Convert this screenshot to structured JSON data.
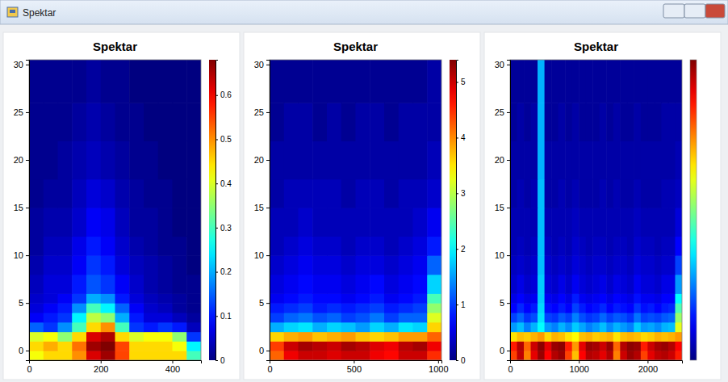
{
  "window": {
    "title": "Spektar"
  },
  "chart_data": [
    {
      "type": "heatmap",
      "title": "Spektar",
      "x_edges": [
        0,
        40,
        80,
        120,
        160,
        200,
        240,
        280,
        320,
        360,
        400,
        440,
        480
      ],
      "y_edges": [
        -1,
        0,
        1,
        2,
        3,
        4,
        5,
        6,
        8,
        10,
        12,
        15,
        18,
        22,
        26,
        30.5
      ],
      "z": [
        [
          0.42,
          0.45,
          0.45,
          0.5,
          0.62,
          0.66,
          0.55,
          0.45,
          0.45,
          0.45,
          0.45,
          0.3
        ],
        [
          0.45,
          0.48,
          0.45,
          0.52,
          0.66,
          0.68,
          0.55,
          0.45,
          0.45,
          0.45,
          0.42,
          0.25
        ],
        [
          0.4,
          0.42,
          0.35,
          0.45,
          0.62,
          0.65,
          0.45,
          0.4,
          0.42,
          0.42,
          0.35,
          0.12
        ],
        [
          0.15,
          0.12,
          0.18,
          0.3,
          0.45,
          0.5,
          0.3,
          0.12,
          0.1,
          0.12,
          0.1,
          0.04
        ],
        [
          0.08,
          0.1,
          0.12,
          0.25,
          0.38,
          0.35,
          0.2,
          0.1,
          0.06,
          0.06,
          0.04,
          0.02
        ],
        [
          0.06,
          0.08,
          0.1,
          0.18,
          0.3,
          0.25,
          0.15,
          0.08,
          0.05,
          0.04,
          0.02,
          0.01
        ],
        [
          0.05,
          0.06,
          0.08,
          0.12,
          0.2,
          0.18,
          0.1,
          0.06,
          0.04,
          0.03,
          0.02,
          0.01
        ],
        [
          0.04,
          0.06,
          0.06,
          0.1,
          0.14,
          0.12,
          0.08,
          0.05,
          0.03,
          0.02,
          0.01,
          0.01
        ],
        [
          0.03,
          0.05,
          0.05,
          0.08,
          0.12,
          0.1,
          0.06,
          0.04,
          0.03,
          0.02,
          0.01,
          0.0
        ],
        [
          0.02,
          0.04,
          0.04,
          0.07,
          0.1,
          0.08,
          0.05,
          0.03,
          0.02,
          0.01,
          0.01,
          0.0
        ],
        [
          0.02,
          0.03,
          0.03,
          0.05,
          0.08,
          0.07,
          0.04,
          0.02,
          0.02,
          0.01,
          0.0,
          0.0
        ],
        [
          0.01,
          0.02,
          0.02,
          0.04,
          0.06,
          0.05,
          0.03,
          0.02,
          0.01,
          0.01,
          0.0,
          0.0
        ],
        [
          0.01,
          0.01,
          0.02,
          0.03,
          0.04,
          0.03,
          0.02,
          0.01,
          0.01,
          0.0,
          0.0,
          0.0
        ],
        [
          0.01,
          0.01,
          0.01,
          0.02,
          0.03,
          0.02,
          0.01,
          0.01,
          0.0,
          0.0,
          0.0,
          0.0
        ],
        [
          0.01,
          0.01,
          0.01,
          0.01,
          0.02,
          0.01,
          0.01,
          0.0,
          0.0,
          0.0,
          0.0,
          0.0
        ]
      ],
      "xlim": [
        0,
        480
      ],
      "xticks": [
        0,
        200,
        400
      ],
      "ylim": [
        -1,
        30.5
      ],
      "yticks": [
        0,
        5,
        10,
        15,
        20,
        25,
        30
      ],
      "colorbar_lim": [
        0,
        0.68
      ],
      "colorbar_ticks": [
        0,
        0.1,
        0.2,
        0.3,
        0.4,
        0.5,
        0.6
      ]
    },
    {
      "type": "heatmap",
      "title": "Spektar",
      "x_edges": [
        0,
        85,
        170,
        255,
        340,
        425,
        510,
        595,
        680,
        765,
        850,
        935,
        1020
      ],
      "y_edges": [
        -1,
        0,
        1,
        2,
        3,
        4,
        5,
        6,
        8,
        10,
        12,
        15,
        18,
        22,
        26,
        30.5
      ],
      "z": [
        [
          4.2,
          4.8,
          5.0,
          5.0,
          4.9,
          5.0,
          5.0,
          4.8,
          4.7,
          5.0,
          5.0,
          4.5
        ],
        [
          4.4,
          5.0,
          5.2,
          5.1,
          5.0,
          5.2,
          5.1,
          4.9,
          4.8,
          5.1,
          5.2,
          4.8
        ],
        [
          3.6,
          3.8,
          3.9,
          3.7,
          3.8,
          3.9,
          3.7,
          3.6,
          3.7,
          3.9,
          3.9,
          4.2
        ],
        [
          1.6,
          1.8,
          1.9,
          1.6,
          1.8,
          1.7,
          1.5,
          1.8,
          1.6,
          1.9,
          1.8,
          3.6
        ],
        [
          1.0,
          1.2,
          1.3,
          1.1,
          1.2,
          1.0,
          1.1,
          1.3,
          1.0,
          1.2,
          1.2,
          3.2
        ],
        [
          0.8,
          0.9,
          1.0,
          0.8,
          0.9,
          0.8,
          0.9,
          1.0,
          0.8,
          0.9,
          1.0,
          2.8
        ],
        [
          0.6,
          0.7,
          0.8,
          0.7,
          0.7,
          0.6,
          0.7,
          0.8,
          0.6,
          0.7,
          0.8,
          2.4
        ],
        [
          0.5,
          0.6,
          0.7,
          0.6,
          0.6,
          0.5,
          0.6,
          0.7,
          0.5,
          0.6,
          0.7,
          1.8
        ],
        [
          0.4,
          0.5,
          0.6,
          0.5,
          0.5,
          0.4,
          0.5,
          0.5,
          0.4,
          0.5,
          0.6,
          1.2
        ],
        [
          0.3,
          0.4,
          0.5,
          0.4,
          0.4,
          0.3,
          0.4,
          0.4,
          0.3,
          0.4,
          0.5,
          0.8
        ],
        [
          0.3,
          0.3,
          0.4,
          0.3,
          0.3,
          0.3,
          0.3,
          0.3,
          0.3,
          0.3,
          0.4,
          0.6
        ],
        [
          0.2,
          0.3,
          0.3,
          0.3,
          0.3,
          0.2,
          0.3,
          0.3,
          0.2,
          0.3,
          0.3,
          0.4
        ],
        [
          0.2,
          0.2,
          0.2,
          0.2,
          0.2,
          0.2,
          0.2,
          0.2,
          0.2,
          0.2,
          0.2,
          0.3
        ],
        [
          0.1,
          0.2,
          0.2,
          0.1,
          0.2,
          0.1,
          0.2,
          0.2,
          0.1,
          0.2,
          0.2,
          0.2
        ],
        [
          0.1,
          0.1,
          0.1,
          0.1,
          0.1,
          0.1,
          0.1,
          0.1,
          0.1,
          0.1,
          0.1,
          0.2
        ]
      ],
      "xlim": [
        0,
        1020
      ],
      "xticks": [
        0,
        500,
        1000
      ],
      "ylim": [
        -1,
        30.5
      ],
      "yticks": [
        0,
        5,
        10,
        15,
        20,
        25,
        30
      ],
      "colorbar_lim": [
        0,
        5.4
      ],
      "colorbar_ticks": [
        0,
        1,
        2,
        3,
        4,
        5
      ]
    },
    {
      "type": "heatmap",
      "title": "Spektar",
      "x_edges": [
        0,
        100,
        200,
        300,
        400,
        500,
        600,
        700,
        800,
        900,
        1000,
        1100,
        1200,
        1300,
        1400,
        1500,
        1600,
        1700,
        1800,
        1900,
        2000,
        2100,
        2200,
        2300,
        2400,
        2500
      ],
      "y_edges": [
        -1,
        0,
        1,
        2,
        3,
        4,
        5,
        6,
        8,
        10,
        12,
        15,
        18,
        22,
        26,
        30.5
      ],
      "z": [
        [
          6.5,
          7.5,
          6.0,
          7.2,
          7.8,
          7.0,
          7.6,
          7.8,
          6.5,
          5.5,
          7.0,
          7.6,
          7.5,
          7.2,
          7.6,
          6.0,
          7.4,
          7.8,
          7.6,
          6.5,
          7.2,
          7.5,
          7.6,
          7.4,
          6.8
        ],
        [
          6.8,
          7.6,
          6.2,
          7.4,
          7.9,
          7.2,
          7.8,
          7.9,
          6.8,
          5.8,
          7.2,
          7.8,
          7.7,
          7.4,
          7.8,
          6.2,
          7.6,
          7.9,
          7.8,
          6.8,
          7.4,
          7.7,
          7.8,
          7.6,
          7.0
        ],
        [
          5.2,
          5.5,
          5.4,
          5.6,
          5.8,
          5.3,
          5.6,
          5.5,
          5.2,
          5.0,
          5.5,
          5.6,
          5.4,
          5.5,
          5.6,
          5.2,
          5.5,
          5.6,
          5.5,
          5.3,
          5.4,
          5.6,
          5.5,
          5.6,
          5.8
        ],
        [
          2.2,
          2.5,
          2.0,
          2.4,
          3.0,
          2.2,
          2.0,
          2.4,
          2.1,
          2.6,
          2.3,
          2.0,
          2.2,
          2.5,
          2.1,
          2.4,
          2.2,
          2.0,
          2.6,
          2.2,
          2.3,
          2.1,
          2.4,
          2.5,
          4.8
        ],
        [
          1.5,
          1.8,
          1.4,
          1.6,
          2.8,
          1.5,
          1.4,
          1.7,
          1.5,
          2.0,
          1.6,
          1.4,
          1.5,
          1.8,
          1.5,
          1.7,
          1.6,
          1.4,
          1.9,
          1.5,
          1.6,
          1.5,
          1.7,
          1.8,
          4.2
        ],
        [
          1.0,
          1.3,
          1.0,
          1.2,
          2.7,
          1.1,
          1.0,
          1.2,
          1.0,
          1.5,
          1.2,
          1.0,
          1.1,
          1.3,
          1.0,
          1.2,
          1.1,
          1.0,
          1.4,
          1.1,
          1.2,
          1.0,
          1.2,
          1.3,
          3.6
        ],
        [
          0.8,
          1.0,
          0.8,
          0.9,
          2.6,
          0.9,
          0.8,
          1.0,
          0.8,
          1.2,
          0.9,
          0.8,
          0.9,
          1.0,
          0.8,
          1.0,
          0.9,
          0.8,
          1.1,
          0.9,
          0.9,
          0.8,
          1.0,
          1.0,
          3.0
        ],
        [
          0.6,
          0.8,
          0.6,
          0.7,
          2.6,
          0.7,
          0.6,
          0.8,
          0.6,
          0.9,
          0.7,
          0.6,
          0.7,
          0.8,
          0.6,
          0.8,
          0.7,
          0.6,
          0.9,
          0.7,
          0.7,
          0.6,
          0.8,
          0.8,
          2.2
        ],
        [
          0.5,
          0.6,
          0.5,
          0.6,
          2.5,
          0.6,
          0.5,
          0.6,
          0.5,
          0.7,
          0.6,
          0.5,
          0.6,
          0.6,
          0.5,
          0.6,
          0.6,
          0.5,
          0.7,
          0.6,
          0.6,
          0.5,
          0.6,
          0.6,
          1.5
        ],
        [
          0.4,
          0.5,
          0.4,
          0.5,
          2.5,
          0.5,
          0.4,
          0.5,
          0.4,
          0.6,
          0.5,
          0.4,
          0.5,
          0.5,
          0.4,
          0.5,
          0.5,
          0.4,
          0.6,
          0.5,
          0.5,
          0.4,
          0.5,
          0.5,
          1.0
        ],
        [
          0.4,
          0.4,
          0.4,
          0.4,
          2.5,
          0.4,
          0.4,
          0.4,
          0.4,
          0.5,
          0.4,
          0.4,
          0.4,
          0.4,
          0.4,
          0.4,
          0.4,
          0.4,
          0.5,
          0.4,
          0.4,
          0.4,
          0.4,
          0.4,
          0.7
        ],
        [
          0.3,
          0.4,
          0.3,
          0.4,
          2.5,
          0.3,
          0.3,
          0.4,
          0.3,
          0.4,
          0.3,
          0.3,
          0.3,
          0.4,
          0.3,
          0.4,
          0.3,
          0.3,
          0.4,
          0.3,
          0.3,
          0.3,
          0.4,
          0.4,
          0.5
        ],
        [
          0.3,
          0.3,
          0.3,
          0.3,
          2.4,
          0.3,
          0.3,
          0.3,
          0.3,
          0.3,
          0.3,
          0.3,
          0.3,
          0.3,
          0.3,
          0.3,
          0.3,
          0.3,
          0.3,
          0.3,
          0.3,
          0.3,
          0.3,
          0.3,
          0.4
        ],
        [
          0.2,
          0.3,
          0.2,
          0.3,
          2.4,
          0.2,
          0.2,
          0.3,
          0.2,
          0.3,
          0.2,
          0.2,
          0.2,
          0.3,
          0.2,
          0.3,
          0.2,
          0.2,
          0.3,
          0.2,
          0.2,
          0.2,
          0.3,
          0.3,
          0.3
        ],
        [
          0.2,
          0.2,
          0.2,
          0.2,
          2.4,
          0.2,
          0.2,
          0.2,
          0.2,
          0.2,
          0.2,
          0.2,
          0.2,
          0.2,
          0.2,
          0.2,
          0.2,
          0.2,
          0.2,
          0.2,
          0.2,
          0.2,
          0.2,
          0.2,
          0.2
        ]
      ],
      "xlim": [
        0,
        2500
      ],
      "xticks": [
        0,
        1000,
        2000
      ],
      "ylim": [
        -1,
        30.5
      ],
      "yticks": [
        0,
        5,
        10,
        15,
        20,
        25,
        30
      ],
      "colorbar_lim": [
        0,
        8
      ]
    }
  ]
}
